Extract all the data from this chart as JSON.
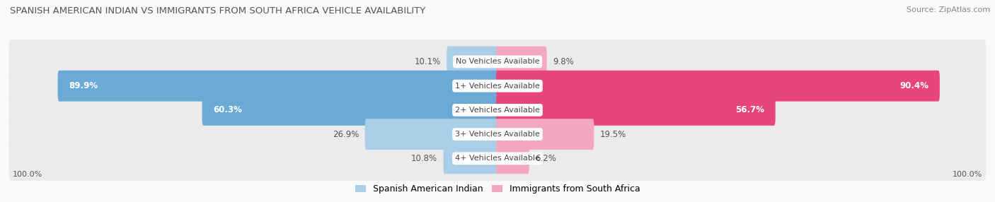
{
  "title": "SPANISH AMERICAN INDIAN VS IMMIGRANTS FROM SOUTH AFRICA VEHICLE AVAILABILITY",
  "source": "Source: ZipAtlas.com",
  "categories": [
    "No Vehicles Available",
    "1+ Vehicles Available",
    "2+ Vehicles Available",
    "3+ Vehicles Available",
    "4+ Vehicles Available"
  ],
  "left_values": [
    10.1,
    89.9,
    60.3,
    26.9,
    10.8
  ],
  "right_values": [
    9.8,
    90.4,
    56.7,
    19.5,
    6.2
  ],
  "left_color_large": "#6aaad4",
  "left_color_small": "#aacde8",
  "right_color_large": "#e8457a",
  "right_color_small": "#f4a8c0",
  "left_label": "Spanish American Indian",
  "right_label": "Immigrants from South Africa",
  "row_bg_color": "#ebebeb",
  "background_color": "#f9f9f9",
  "max_value": 100.0,
  "large_threshold": 40
}
